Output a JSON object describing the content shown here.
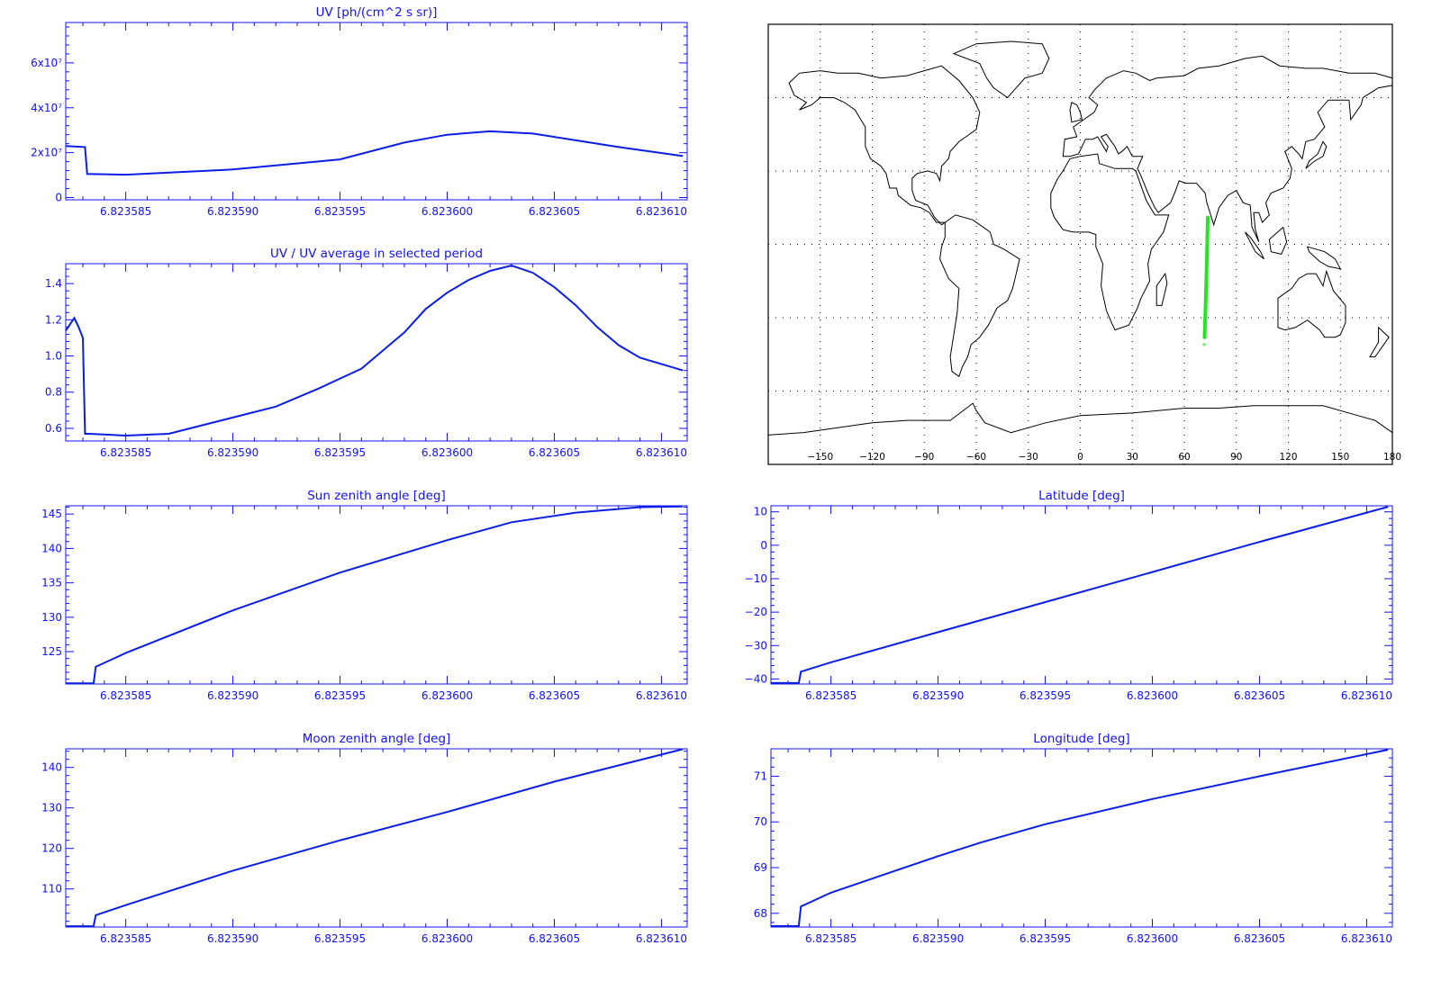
{
  "colors": {
    "axis": "#1010ff",
    "line": "#0a1ee6",
    "track": "#22e622",
    "map": "#000000"
  },
  "chart_data": [
    {
      "id": "uv",
      "type": "line",
      "title": "UV [ph/(cm^2 s sr)]",
      "xlim": [
        6.8235822,
        6.8236112
      ],
      "ylim": [
        -1000000,
        78000000
      ],
      "x_ticks": [
        "6.823585",
        "6.823590",
        "6.823595",
        "6.823600",
        "6.823605",
        "6.823610"
      ],
      "y_ticks": [
        {
          "value": 0,
          "label": "0"
        },
        {
          "value": 20000000,
          "label": "2x10⁷"
        },
        {
          "value": 40000000,
          "label": "4x10⁷"
        },
        {
          "value": 60000000,
          "label": "6x10⁷"
        }
      ],
      "series": [
        {
          "x": [
            6.8235822,
            6.8235831,
            6.8235832,
            6.823585,
            6.82359,
            6.823595,
            6.823598,
            6.8236,
            6.823602,
            6.823604,
            6.823606,
            6.823608,
            6.823611
          ],
          "values": [
            23000000,
            22500000,
            10500000,
            10200000,
            12500000,
            17000000,
            24500000,
            28000000,
            29500000,
            28500000,
            25500000,
            22500000,
            18500000
          ]
        }
      ]
    },
    {
      "id": "uv_ratio",
      "type": "line",
      "title": "UV / UV average in selected period",
      "xlim": [
        6.8235822,
        6.8236112
      ],
      "ylim": [
        0.53,
        1.51
      ],
      "x_ticks": [
        "6.823585",
        "6.823590",
        "6.823595",
        "6.823600",
        "6.823605",
        "6.823610"
      ],
      "y_ticks": [
        {
          "value": 0.6,
          "label": "0.6"
        },
        {
          "value": 0.8,
          "label": "0.8"
        },
        {
          "value": 1.0,
          "label": "1.0"
        },
        {
          "value": 1.2,
          "label": "1.2"
        },
        {
          "value": 1.4,
          "label": "1.4"
        }
      ],
      "series": [
        {
          "x": [
            6.8235822,
            6.8235826,
            6.8235828,
            6.823583,
            6.8235831,
            6.8235833,
            6.823585,
            6.823587,
            6.82359,
            6.823592,
            6.823594,
            6.823596,
            6.823598,
            6.823599,
            6.8236,
            6.823601,
            6.823602,
            6.823603,
            6.823604,
            6.823605,
            6.823606,
            6.823607,
            6.823608,
            6.823609,
            6.823611
          ],
          "values": [
            1.14,
            1.21,
            1.16,
            1.1,
            0.57,
            0.57,
            0.56,
            0.57,
            0.66,
            0.72,
            0.82,
            0.93,
            1.13,
            1.26,
            1.35,
            1.42,
            1.47,
            1.5,
            1.46,
            1.38,
            1.28,
            1.16,
            1.06,
            0.99,
            0.92
          ]
        }
      ]
    },
    {
      "id": "sun",
      "type": "line",
      "title": "Sun zenith angle [deg]",
      "xlim": [
        6.8235822,
        6.8236112
      ],
      "ylim": [
        120.3,
        146.2
      ],
      "x_ticks": [
        "6.823585",
        "6.823590",
        "6.823595",
        "6.823600",
        "6.823605",
        "6.823610"
      ],
      "y_ticks": [
        {
          "value": 125,
          "label": "125"
        },
        {
          "value": 130,
          "label": "130"
        },
        {
          "value": 135,
          "label": "135"
        },
        {
          "value": 140,
          "label": "140"
        },
        {
          "value": 145,
          "label": "145"
        }
      ],
      "series": [
        {
          "x": [
            6.8235822,
            6.8235835,
            6.8235836,
            6.823585,
            6.82359,
            6.823595,
            6.8236,
            6.823603,
            6.823606,
            6.823609,
            6.823611
          ],
          "values": [
            120.4,
            120.4,
            122.8,
            124.8,
            131.0,
            136.5,
            141.2,
            143.8,
            145.2,
            146.0,
            146.1
          ]
        }
      ]
    },
    {
      "id": "moon",
      "type": "line",
      "title": "Moon zenith angle [deg]",
      "xlim": [
        6.8235822,
        6.8236112
      ],
      "ylim": [
        100.6,
        144.6
      ],
      "x_ticks": [
        "6.823585",
        "6.823590",
        "6.823595",
        "6.823600",
        "6.823605",
        "6.823610"
      ],
      "y_ticks": [
        {
          "value": 110,
          "label": "110"
        },
        {
          "value": 120,
          "label": "120"
        },
        {
          "value": 130,
          "label": "130"
        },
        {
          "value": 140,
          "label": "140"
        }
      ],
      "series": [
        {
          "x": [
            6.8235822,
            6.8235835,
            6.8235836,
            6.823585,
            6.82359,
            6.823595,
            6.8236,
            6.823605,
            6.823611
          ],
          "values": [
            100.8,
            100.8,
            103.5,
            106.0,
            114.5,
            122.0,
            129.0,
            136.5,
            144.5
          ]
        }
      ]
    },
    {
      "id": "lat",
      "type": "line",
      "title": "Latitude [deg]",
      "xlim": [
        6.8235822,
        6.8236112
      ],
      "ylim": [
        -41.5,
        11.8
      ],
      "x_ticks": [
        "6.823585",
        "6.823590",
        "6.823595",
        "6.823600",
        "6.823605",
        "6.823610"
      ],
      "y_ticks": [
        {
          "value": -40,
          "label": "−40"
        },
        {
          "value": -30,
          "label": "−30"
        },
        {
          "value": -20,
          "label": "−20"
        },
        {
          "value": -10,
          "label": "−10"
        },
        {
          "value": 0,
          "label": "0"
        },
        {
          "value": 10,
          "label": "10"
        }
      ],
      "series": [
        {
          "x": [
            6.8235822,
            6.8235835,
            6.8235836,
            6.823585,
            6.82359,
            6.823595,
            6.8236,
            6.823605,
            6.823611
          ],
          "values": [
            -41.2,
            -41.2,
            -37.8,
            -35.0,
            -26.0,
            -17.0,
            -8.0,
            1.0,
            11.5
          ]
        }
      ]
    },
    {
      "id": "lon",
      "type": "line",
      "title": "Longitude [deg]",
      "xlim": [
        6.8235822,
        6.8236112
      ],
      "ylim": [
        67.7,
        71.6
      ],
      "x_ticks": [
        "6.823585",
        "6.823590",
        "6.823595",
        "6.823600",
        "6.823605",
        "6.823610"
      ],
      "y_ticks": [
        {
          "value": 68,
          "label": "68"
        },
        {
          "value": 69,
          "label": "69"
        },
        {
          "value": 70,
          "label": "70"
        },
        {
          "value": 71,
          "label": "71"
        }
      ],
      "series": [
        {
          "x": [
            6.8235822,
            6.8235835,
            6.8235836,
            6.823585,
            6.8235875,
            6.82359,
            6.823592,
            6.823595,
            6.8236,
            6.823605,
            6.823611
          ],
          "values": [
            67.72,
            67.72,
            68.15,
            68.45,
            68.85,
            69.25,
            69.55,
            69.95,
            70.5,
            71.0,
            71.58
          ]
        }
      ]
    }
  ],
  "map": {
    "x_ticks": [
      "−150",
      "−120",
      "−90",
      "−60",
      "−30",
      "0",
      "30",
      "60",
      "90",
      "120",
      "150",
      "180"
    ],
    "track": {
      "lon": [
        73.5,
        73.2,
        72.8,
        72.3,
        71.7
      ],
      "lat": [
        11,
        0,
        -12,
        -24,
        -38
      ]
    }
  }
}
